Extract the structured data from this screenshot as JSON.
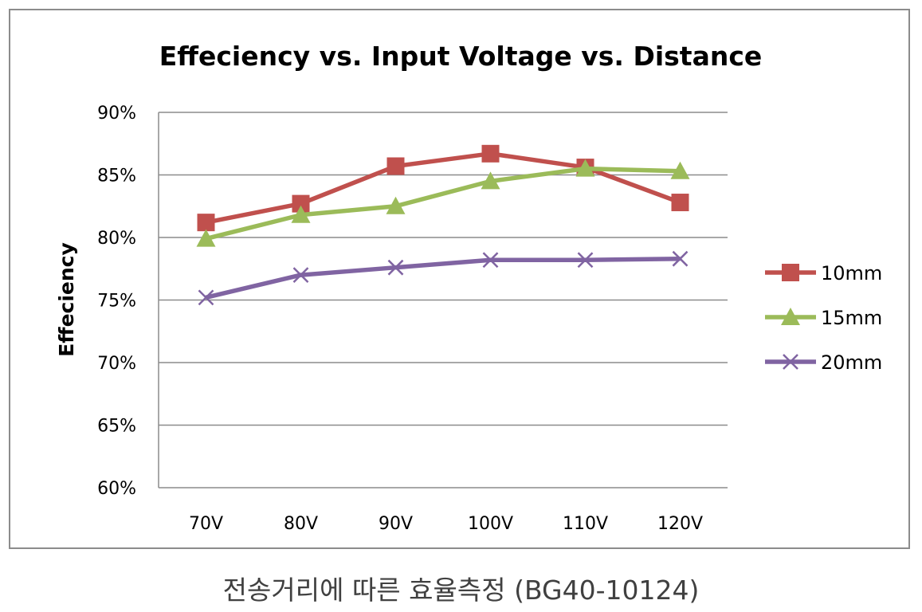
{
  "chart_data": {
    "type": "line",
    "title": "Effeciency vs. Input Voltage vs. Distance",
    "xlabel": "",
    "ylabel": "Effeciency",
    "categories": [
      "70V",
      "80V",
      "90V",
      "100V",
      "110V",
      "120V"
    ],
    "ylim": [
      60,
      90
    ],
    "yticks": [
      "60%",
      "65%",
      "70%",
      "75%",
      "80%",
      "85%",
      "90%"
    ],
    "grid": true,
    "legend_position": "right",
    "series": [
      {
        "name": "10mm",
        "values": [
          81.2,
          82.7,
          85.7,
          86.7,
          85.6,
          82.8
        ],
        "color": "#c0504d",
        "marker": "square"
      },
      {
        "name": "15mm",
        "values": [
          79.9,
          81.8,
          82.5,
          84.5,
          85.5,
          85.3
        ],
        "color": "#9bbb59",
        "marker": "triangle"
      },
      {
        "name": "20mm",
        "values": [
          75.2,
          77.0,
          77.6,
          78.2,
          78.2,
          78.3
        ],
        "color": "#8064a2",
        "marker": "x"
      }
    ]
  },
  "caption": "전송거리에 따른 효율측정 (BG40-10124)"
}
